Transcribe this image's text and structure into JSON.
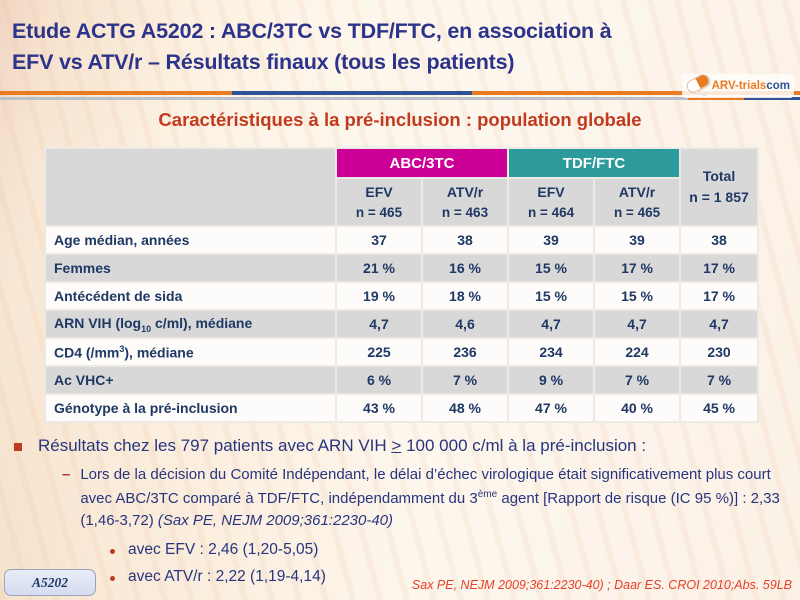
{
  "header": {
    "title_line1": "Etude ACTG A5202 : ABC/3TC vs TDF/FTC, en association à",
    "title_line2": "EFV vs ATV/r – Résultats finaux (tous les patients)"
  },
  "logo": {
    "brand": "ARV-trials",
    "tld": "com"
  },
  "subtitle": "Caractéristiques à la pré-inclusion : population globale",
  "colors": {
    "title_navy": "#2c338b",
    "text_navy": "#1f3864",
    "subtitle_red": "#c23a1e",
    "accent_magenta": "#cc0096",
    "accent_teal": "#2d9b9b",
    "rule_orange": "#e87c22",
    "rule_blue": "#2e5395",
    "citation_red": "#e8402a",
    "row_gray": "#d8d8d8"
  },
  "table": {
    "group_headers": {
      "abc": "ABC/3TC",
      "tdf": "TDF/FTC"
    },
    "total_header": {
      "line1": "Total",
      "line2": "n = 1 857"
    },
    "arm_headers": [
      {
        "drug": "EFV",
        "n": "n = 465"
      },
      {
        "drug": "ATV/r",
        "n": "n = 463"
      },
      {
        "drug": "EFV",
        "n": "n = 464"
      },
      {
        "drug": "ATV/r",
        "n": "n = 465"
      }
    ],
    "rows": [
      {
        "label": "Age médian, années",
        "values": [
          "37",
          "38",
          "39",
          "39",
          "38"
        ]
      },
      {
        "label": "Femmes",
        "values": [
          "21 %",
          "16 %",
          "15 %",
          "17 %",
          "17 %"
        ]
      },
      {
        "label": "Antécédent de sida",
        "values": [
          "19 %",
          "18 %",
          "15 %",
          "15 %",
          "17 %"
        ]
      },
      {
        "label_pre": "ARN VIH (log",
        "label_sub": "10",
        "label_post": " c/ml), médiane",
        "values": [
          "4,7",
          "4,6",
          "4,7",
          "4,7",
          "4,7"
        ]
      },
      {
        "label_pre": "CD4 (/mm",
        "label_sup": "3",
        "label_post": "), médiane",
        "values": [
          "225",
          "236",
          "234",
          "224",
          "230"
        ]
      },
      {
        "label": "Ac VHC+",
        "values": [
          "6 %",
          "7 %",
          "9 %",
          "7 %",
          "7 %"
        ]
      },
      {
        "label": "Génotype à la pré-inclusion",
        "values": [
          "43 %",
          "48 %",
          "47 %",
          "40 %",
          "45 %"
        ]
      }
    ]
  },
  "bullets": {
    "level1_pre": "Résultats chez les 797 patients avec ARN VIH ",
    "level1_geq": ">",
    "level1_post": " 100 000 c/ml à la pré-inclusion :",
    "level2_text_a": "Lors de la décision du Comité Indépendant, le délai d’échec virologique était significativement plus court avec ABC/3TC comparé à TDF/FTC, indépendamment du 3",
    "level2_sup": "ème",
    "level2_text_b": " agent [Rapport de risque (IC 95 %)] : 2,33 (1,46-3,72) ",
    "level2_citation": "(Sax PE, NEJM 2009;361:2230-40)",
    "level3_a": "avec EFV : 2,46 (1,20-5,05)",
    "level3_b": "avec ATV/r : 2,22 (1,19-4,14)"
  },
  "footer": {
    "study_badge": "A5202",
    "citation": "Sax PE, NEJM 2009;361:2230-40) ; Daar ES. CROI 2010;Abs. 59LB"
  }
}
